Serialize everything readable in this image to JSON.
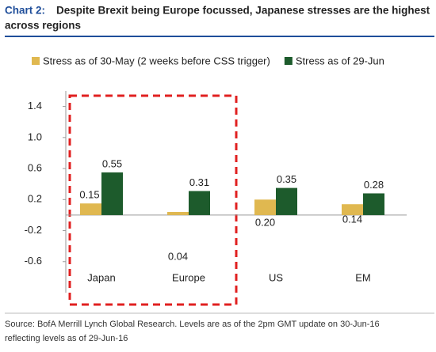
{
  "chart_data": {
    "type": "bar",
    "chart_label": "Chart 2:",
    "title": "Despite Brexit being Europe focussed, Japanese stresses are the highest",
    "title_line2": "across regions",
    "categories": [
      "Japan",
      "Europe",
      "US",
      "EM"
    ],
    "series": [
      {
        "name": "Stress as of 30-May (2 weeks before CSS trigger)",
        "color": "#e0b850",
        "values": [
          0.15,
          0.04,
          0.2,
          0.14
        ],
        "value_labels": [
          "0.15",
          "0.04",
          "0.20",
          "0.14"
        ]
      },
      {
        "name": "Stress as of 29-Jun",
        "color": "#1d5b2c",
        "values": [
          0.55,
          0.31,
          0.35,
          0.28
        ]
      }
    ],
    "ylim": [
      -1.0,
      1.6
    ],
    "yticks": [
      1.4,
      {
        "value": 1,
        "label": "1.0"
      },
      0.6,
      0.2,
      -0.2,
      -0.6
    ],
    "grid": false,
    "source": "Source: BofA Merrill Lynch Global Research. Levels are as of the 2pm GMT update on 30-Jun-16",
    "source_line2": "reflecting levels as of 29-Jun-16"
  }
}
